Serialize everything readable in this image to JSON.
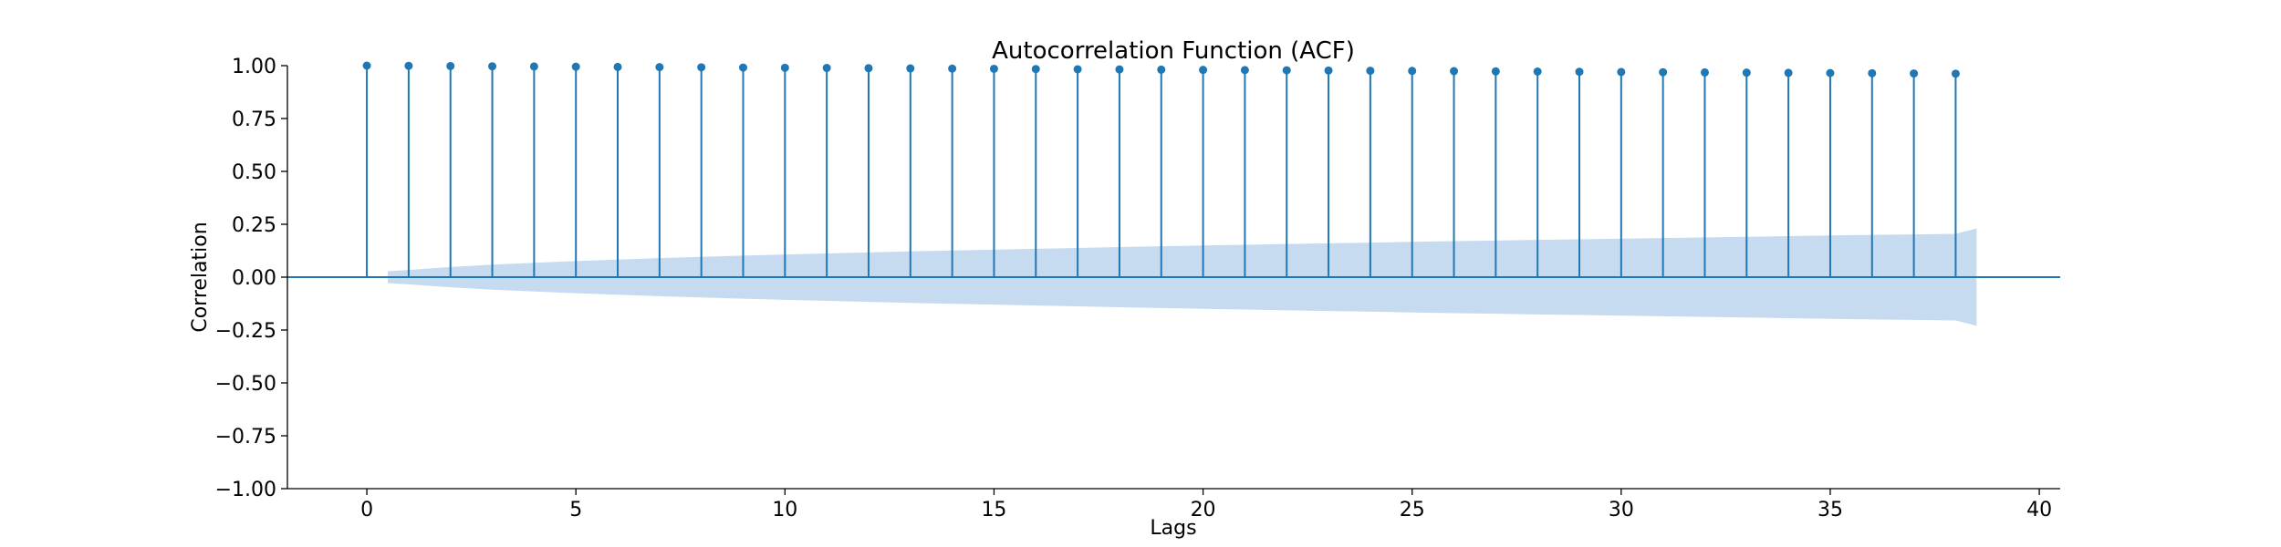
{
  "chart_data": {
    "type": "stem",
    "title": "Autocorrelation Function (ACF)",
    "xlabel": "Lags",
    "ylabel": "Correlation",
    "xlim": [
      -1.9,
      40.5
    ],
    "ylim": [
      -1.0,
      1.0
    ],
    "xticks": [
      0,
      5,
      10,
      15,
      20,
      25,
      30,
      35,
      40
    ],
    "yticks": [
      -1.0,
      -0.75,
      -0.5,
      -0.25,
      0.0,
      0.25,
      0.5,
      0.75,
      1.0
    ],
    "ytick_labels": [
      "−1.00",
      "−0.75",
      "−0.50",
      "−0.25",
      "0.00",
      "0.25",
      "0.50",
      "0.75",
      "1.00"
    ],
    "xtick_labels": [
      "0",
      "5",
      "10",
      "15",
      "20",
      "25",
      "30",
      "35",
      "40"
    ],
    "grid": false,
    "colors": {
      "stem": "#1f77b4",
      "band": "#c6dbef"
    },
    "lags": [
      0,
      1,
      2,
      3,
      4,
      5,
      6,
      7,
      8,
      9,
      10,
      11,
      12,
      13,
      14,
      15,
      16,
      17,
      18,
      19,
      20,
      21,
      22,
      23,
      24,
      25,
      26,
      27,
      28,
      29,
      30,
      31,
      32,
      33,
      34,
      35,
      36,
      37,
      38
    ],
    "values": [
      1.0,
      0.999,
      0.998,
      0.997,
      0.996,
      0.995,
      0.994,
      0.993,
      0.992,
      0.991,
      0.99,
      0.989,
      0.988,
      0.987,
      0.986,
      0.985,
      0.984,
      0.983,
      0.982,
      0.981,
      0.98,
      0.979,
      0.978,
      0.977,
      0.976,
      0.975,
      0.974,
      0.973,
      0.972,
      0.971,
      0.97,
      0.969,
      0.968,
      0.967,
      0.966,
      0.965,
      0.964,
      0.963,
      0.962
    ],
    "confidence_band": {
      "x": [
        0.5,
        1,
        2,
        3,
        4,
        5,
        6,
        7,
        8,
        9,
        10,
        11,
        12,
        13,
        14,
        15,
        16,
        17,
        18,
        19,
        20,
        21,
        22,
        23,
        24,
        25,
        26,
        27,
        28,
        29,
        30,
        31,
        32,
        33,
        34,
        35,
        36,
        37,
        38,
        38.5
      ],
      "upper": [
        0.028,
        0.034,
        0.048,
        0.059,
        0.068,
        0.076,
        0.083,
        0.09,
        0.096,
        0.102,
        0.107,
        0.112,
        0.117,
        0.122,
        0.126,
        0.13,
        0.134,
        0.138,
        0.142,
        0.146,
        0.15,
        0.153,
        0.157,
        0.16,
        0.163,
        0.167,
        0.17,
        0.173,
        0.176,
        0.179,
        0.182,
        0.185,
        0.188,
        0.191,
        0.194,
        0.197,
        0.2,
        0.202,
        0.205,
        0.23
      ]
    }
  }
}
